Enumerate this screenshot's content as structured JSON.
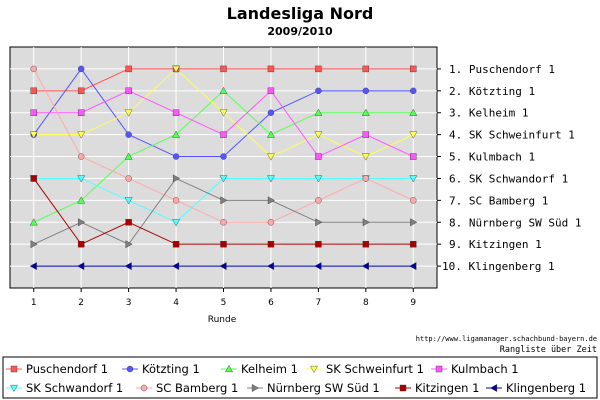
{
  "chart_data": {
    "type": "line",
    "title": "Landesliga Nord",
    "subtitle": "2009/2010",
    "xlabel": "Runde",
    "x": [
      1,
      2,
      3,
      4,
      5,
      6,
      7,
      8,
      9
    ],
    "y_range": [
      11,
      0
    ],
    "y_inverted": true,
    "grid": true,
    "legend_position": "bottom",
    "source_url": "http://www.ligamanager.schachbund-bayern.de",
    "source_caption": "Rangliste über Zeit",
    "rank_labels": [
      "1. Puschendorf 1",
      "2. Kötzting 1",
      "3. Kelheim 1",
      "4. SK Schweinfurt 1",
      "5. Kulmbach 1",
      "6. SK Schwandorf 1",
      "7. SC Bamberg 1",
      "8. Nürnberg SW Süd 1",
      "9. Kitzingen 1",
      "10. Klingenberg 1"
    ],
    "series": [
      {
        "name": "Puschendorf 1",
        "color": "#ff5555",
        "marker": "square",
        "values": [
          2,
          2,
          1,
          1,
          1,
          1,
          1,
          1,
          1
        ]
      },
      {
        "name": "Kötzting 1",
        "color": "#5555ff",
        "marker": "circle",
        "values": [
          4,
          1,
          4,
          5,
          5,
          3,
          2,
          2,
          2
        ]
      },
      {
        "name": "Kelheim 1",
        "color": "#55ff55",
        "marker": "triangle-up",
        "values": [
          8,
          7,
          5,
          4,
          2,
          4,
          3,
          3,
          3
        ]
      },
      {
        "name": "SK Schweinfurt 1",
        "color": "#ffff55",
        "marker": "triangle-down",
        "values": [
          4,
          4,
          3,
          1,
          3,
          5,
          4,
          5,
          4
        ]
      },
      {
        "name": "Kulmbach 1",
        "color": "#ff55ff",
        "marker": "square",
        "values": [
          3,
          3,
          2,
          3,
          4,
          2,
          5,
          4,
          5
        ]
      },
      {
        "name": "SK Schwandorf 1",
        "color": "#55ffff",
        "marker": "triangle-down",
        "values": [
          6,
          6,
          7,
          8,
          6,
          6,
          6,
          6,
          6
        ]
      },
      {
        "name": "SC Bamberg 1",
        "color": "#ffaaaa",
        "marker": "circle",
        "values": [
          1,
          5,
          6,
          7,
          8,
          8,
          7,
          6,
          7
        ]
      },
      {
        "name": "Nürnberg SW Süd 1",
        "color": "#808080",
        "marker": "triangle-right",
        "values": [
          9,
          8,
          9,
          6,
          7,
          7,
          8,
          8,
          8
        ]
      },
      {
        "name": "Kitzingen 1",
        "color": "#aa0000",
        "marker": "square",
        "values": [
          6,
          9,
          8,
          9,
          9,
          9,
          9,
          9,
          9
        ]
      },
      {
        "name": "Klingenberg 1",
        "color": "#0000aa",
        "marker": "triangle-left",
        "values": [
          10,
          10,
          10,
          10,
          10,
          10,
          10,
          10,
          10
        ]
      }
    ]
  }
}
